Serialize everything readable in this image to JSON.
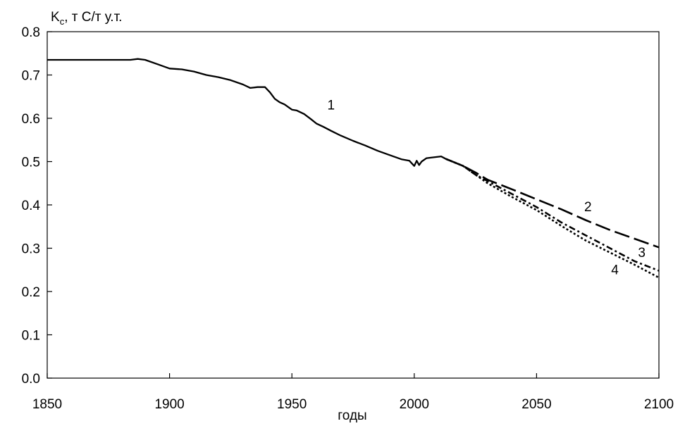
{
  "chart_data": {
    "type": "line",
    "title": "",
    "ylabel_main": "K",
    "ylabel_sub": "c",
    "ylabel_rest": ", т С/т у.т.",
    "xlabel": "годы",
    "xlim": [
      1850,
      2100
    ],
    "ylim": [
      0,
      0.8
    ],
    "xticks": [
      1850,
      1900,
      1950,
      2000,
      2050,
      2100
    ],
    "yticks": [
      0,
      0.1,
      0.2,
      0.3,
      0.4,
      0.5,
      0.6,
      0.7,
      0.8
    ],
    "ytick_labels": [
      "0.0",
      "0.1",
      "0.2",
      "0.3",
      "0.4",
      "0.5",
      "0.6",
      "0.7",
      "0.8"
    ],
    "grid": false,
    "legend": "none",
    "series": [
      {
        "label": "1",
        "style": "solid",
        "x": [
          1850,
          1860,
          1870,
          1880,
          1884,
          1887,
          1890,
          1895,
          1900,
          1905,
          1910,
          1915,
          1920,
          1925,
          1930,
          1933,
          1936,
          1939,
          1941,
          1943,
          1945,
          1947,
          1950,
          1952,
          1955,
          1958,
          1960,
          1963,
          1966,
          1970,
          1975,
          1980,
          1985,
          1990,
          1995,
          1998,
          2000,
          2001,
          2002,
          2003,
          2005,
          2008,
          2011,
          2013
        ],
        "y": [
          0.735,
          0.735,
          0.735,
          0.735,
          0.735,
          0.737,
          0.735,
          0.725,
          0.715,
          0.713,
          0.708,
          0.7,
          0.695,
          0.688,
          0.678,
          0.67,
          0.672,
          0.672,
          0.66,
          0.645,
          0.637,
          0.632,
          0.62,
          0.618,
          0.61,
          0.597,
          0.588,
          0.58,
          0.571,
          0.56,
          0.548,
          0.537,
          0.525,
          0.515,
          0.505,
          0.502,
          0.49,
          0.502,
          0.492,
          0.5,
          0.508,
          0.51,
          0.512,
          0.506
        ]
      },
      {
        "label": "2",
        "style": "long-dash",
        "x": [
          2013,
          2020,
          2025,
          2030,
          2040,
          2050,
          2060,
          2070,
          2080,
          2090,
          2100
        ],
        "y": [
          0.506,
          0.49,
          0.475,
          0.458,
          0.436,
          0.413,
          0.39,
          0.365,
          0.342,
          0.322,
          0.302
        ]
      },
      {
        "label": "3",
        "style": "dash-dot",
        "x": [
          2013,
          2020,
          2025,
          2030,
          2040,
          2050,
          2060,
          2070,
          2080,
          2090,
          2100
        ],
        "y": [
          0.506,
          0.49,
          0.47,
          0.455,
          0.425,
          0.395,
          0.36,
          0.33,
          0.3,
          0.27,
          0.248
        ]
      },
      {
        "label": "4",
        "style": "dotted",
        "x": [
          2013,
          2020,
          2025,
          2030,
          2040,
          2050,
          2060,
          2070,
          2080,
          2090,
          2100
        ],
        "y": [
          0.506,
          0.49,
          0.47,
          0.45,
          0.418,
          0.388,
          0.352,
          0.318,
          0.29,
          0.262,
          0.232
        ]
      }
    ],
    "annotations": [
      {
        "text": "1",
        "x": 1966,
        "y": 0.62
      },
      {
        "text": "2",
        "x": 2071,
        "y": 0.385
      },
      {
        "text": "3",
        "x": 2093,
        "y": 0.28
      },
      {
        "text": "4",
        "x": 2082,
        "y": 0.24
      }
    ]
  }
}
